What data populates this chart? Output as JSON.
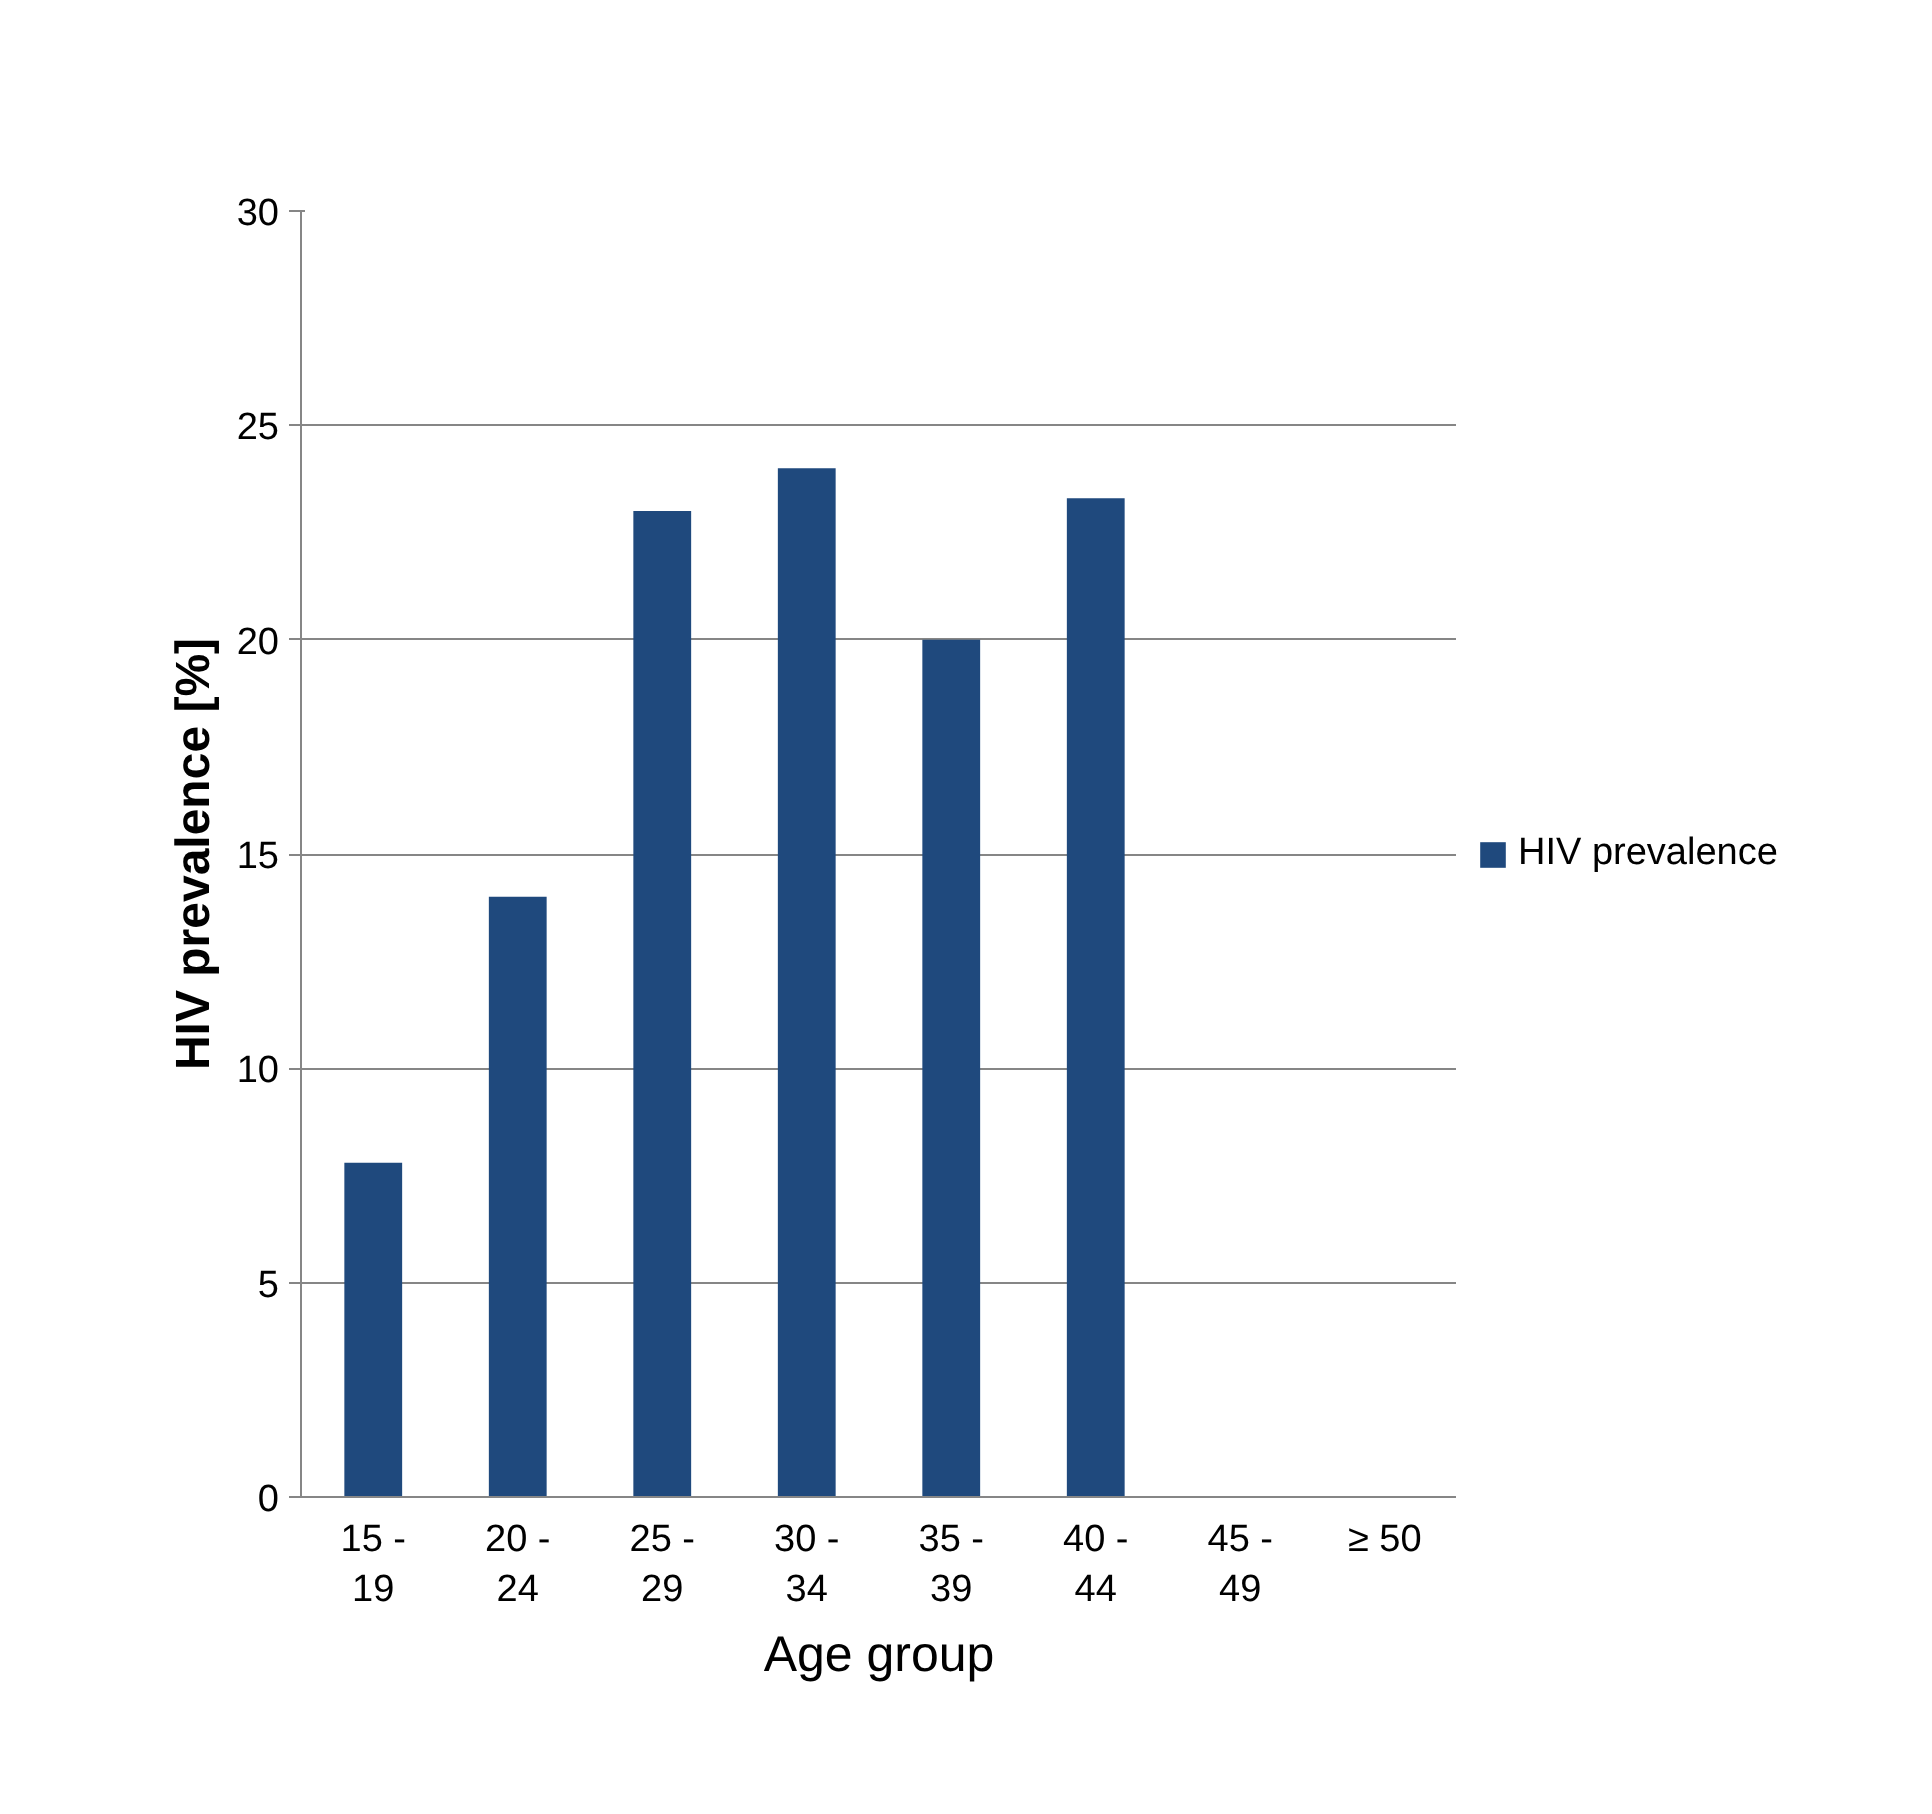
{
  "chart_data": {
    "type": "bar",
    "xlabel": "Age group",
    "ylabel": "HIV prevalence [%]",
    "categories": [
      "15 - 19",
      "20 - 24",
      "25 - 29",
      "30 - 34",
      "35 - 39",
      "40 - 44",
      "45 - 49",
      "≥ 50"
    ],
    "series": [
      {
        "name": "HIV prevalence",
        "color": "#1f497d",
        "values": [
          7.8,
          14,
          23,
          24,
          20,
          23.3,
          null,
          null
        ]
      }
    ],
    "ylim": [
      0,
      30
    ],
    "yticks": [
      0,
      5,
      10,
      15,
      20,
      25,
      30
    ],
    "grid": "y",
    "legend": "right"
  }
}
